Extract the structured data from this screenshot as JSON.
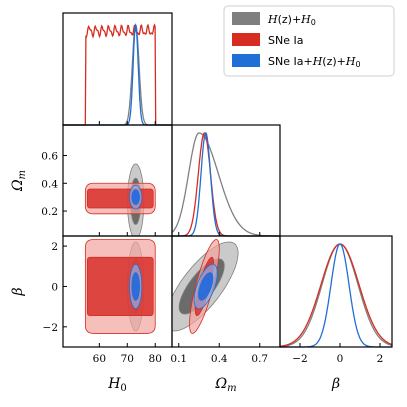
{
  "chart_data": {
    "type": "corner",
    "parameters": [
      {
        "key": "H0",
        "label_base": "H",
        "label_sub": "0",
        "ticks": [
          60,
          70,
          80
        ],
        "range": [
          47,
          86
        ]
      },
      {
        "key": "Om",
        "label_base": "Ω",
        "label_sub": "m",
        "ticks": [
          0.1,
          0.4,
          0.7
        ],
        "ticks_y": [
          0.2,
          0.4,
          0.6
        ],
        "range": [
          0.05,
          0.85
        ],
        "range_y": [
          0.02,
          0.82
        ]
      },
      {
        "key": "beta",
        "label_base": "β",
        "label_sub": "",
        "ticks": [
          -2,
          0,
          2
        ],
        "range": [
          -3,
          2.6
        ],
        "range_y": [
          -3.0,
          2.5
        ]
      }
    ],
    "tick_labels": {
      "H0_x": [
        "60",
        "70",
        "80"
      ],
      "Om_x": [
        "0.1",
        "0.4",
        "0.7"
      ],
      "beta_x": [
        "−2",
        "0",
        "2"
      ],
      "Om_y": [
        "0.2",
        "0.4",
        "0.6"
      ],
      "beta_y": [
        "−2",
        "0",
        "2"
      ]
    },
    "series": [
      {
        "name": "H(z)+H₀",
        "legend_parts": [
          {
            "t": "H",
            "i": true
          },
          {
            "t": "(z)+",
            "i": false
          },
          {
            "t": "H",
            "i": true
          },
          {
            "t": "0",
            "i": false,
            "sub": true
          }
        ],
        "color": "#808080",
        "fill_inner": "#5a5a5a",
        "fill_outer": "#b3b3b3",
        "H0": {
          "mean": 73.0,
          "sd": 1.2
        },
        "Om": {
          "mean": 0.27,
          "sd": 0.11,
          "peak": 0.25,
          "skew_right": 0.15
        },
        "beta": {
          "mean": 0.0,
          "sd": 0.9
        },
        "corr_Om_beta": 0.75
      },
      {
        "name": "SNe Ia",
        "legend_parts": [
          {
            "t": "SNe Ia",
            "i": false
          }
        ],
        "color": "#d62d20",
        "fill_inner": "#d8302a",
        "fill_outer": "#f2a4a0",
        "H0": {
          "flat_min": 55.0,
          "flat_max": 80.0
        },
        "Om": {
          "mean": 0.29,
          "sd": 0.045
        },
        "beta": {
          "mean": 0.0,
          "sd": 0.95
        },
        "corr_Om_beta": 0.8
      },
      {
        "name": "SNe Ia+H(z)+H₀",
        "legend_parts": [
          {
            "t": "SNe Ia+",
            "i": false
          },
          {
            "t": "H",
            "i": true
          },
          {
            "t": "(z)+",
            "i": false
          },
          {
            "t": "H",
            "i": true
          },
          {
            "t": "0",
            "i": false,
            "sub": true
          }
        ],
        "color": "#1f6fd6",
        "fill_inner": "#1a66e0",
        "fill_outer": "#8fb0ea",
        "H0": {
          "mean": 73.0,
          "sd": 0.9
        },
        "Om": {
          "mean": 0.3,
          "sd": 0.035
        },
        "beta": {
          "mean": 0.0,
          "sd": 0.45
        },
        "corr_Om_beta": 0.6
      }
    ],
    "legend_position": "top-right",
    "grid": false
  }
}
